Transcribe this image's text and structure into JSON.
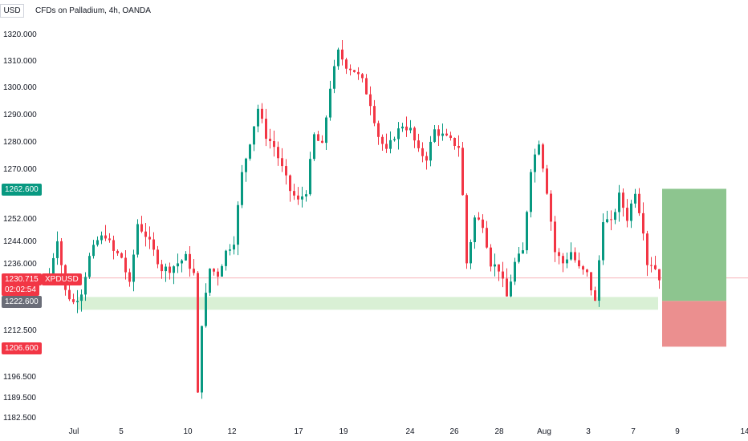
{
  "header": {
    "currency": "USD",
    "title": "CFDs on Palladium, 4h, OANDA"
  },
  "price_tags": {
    "target": "1262.600",
    "entry": "1222.600",
    "stop": "1206.600",
    "last_price": "1230.715",
    "symbol": "XPDUSD",
    "countdown": "02:02:54"
  },
  "colors": {
    "up": "#089981",
    "down": "#f23645",
    "target_zone": "#8dc58f",
    "stop_zone": "#eb8f8f",
    "support_band": "#d9f0d5",
    "price_line": "#f7b3b8"
  },
  "chart_data": {
    "type": "candlestick",
    "timeframe": "4h",
    "y_ticks": [
      "1320.000",
      "1310.000",
      "1300.000",
      "1290.000",
      "1280.000",
      "1270.000",
      "1252.000",
      "1244.000",
      "1236.000",
      "1212.500",
      "1196.500",
      "1189.500",
      "1182.500"
    ],
    "x_ticks": [
      "Jul",
      "5",
      "10",
      "12",
      "17",
      "19",
      "24",
      "26",
      "28",
      "Aug",
      "3",
      "7",
      "9",
      "14"
    ],
    "ylim": [
      1180,
      1325
    ],
    "support_band": [
      1219.5,
      1224
    ],
    "position": {
      "entry": 1222.6,
      "target": 1262.6,
      "stop": 1206.6
    },
    "last_price": 1230.715
  }
}
